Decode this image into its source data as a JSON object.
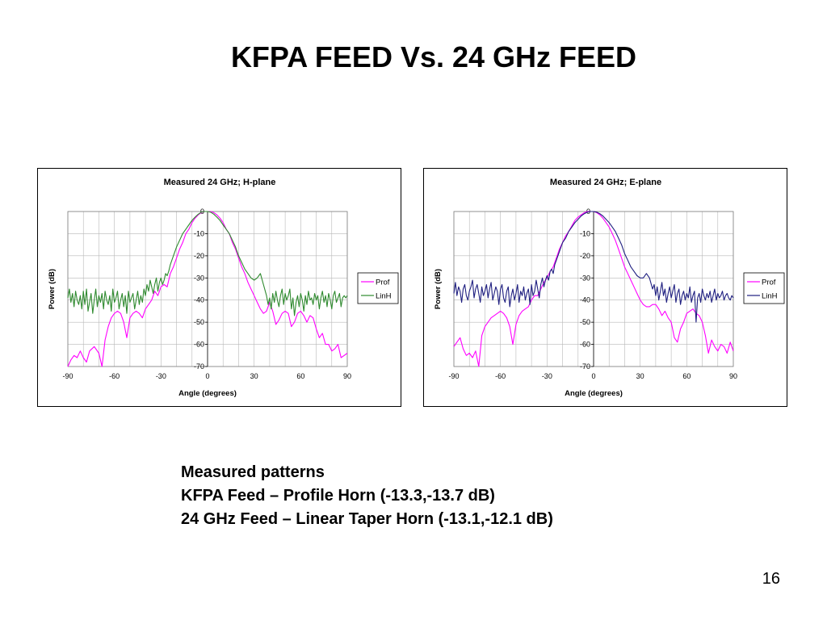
{
  "slide": {
    "title": "KFPA FEED Vs. 24 GHz FEED",
    "caption": [
      "Measured patterns",
      "KFPA Feed – Profile Horn (-13.3,-13.7 dB)",
      "24 GHz Feed – Linear Taper Horn (-13.1,-12.1 dB)"
    ],
    "page_number": "16"
  },
  "chart_data": [
    {
      "type": "line",
      "title": "Measured 24 GHz; H-plane",
      "xlabel": "Angle (degrees)",
      "ylabel": "Power (dB)",
      "xlim": [
        -90,
        90
      ],
      "ylim": [
        -70,
        0
      ],
      "xticks": [
        -90,
        -60,
        -30,
        0,
        30,
        60,
        90
      ],
      "yticks": [
        0,
        -10,
        -20,
        -30,
        -40,
        -50,
        -60,
        -70
      ],
      "grid": true,
      "legend_position": "right",
      "series": [
        {
          "name": "Prof",
          "color": "#ff00ff",
          "x": [
            -90,
            -88,
            -86,
            -84,
            -82,
            -80,
            -78,
            -76,
            -73,
            -70,
            -68,
            -66,
            -64,
            -62,
            -60,
            -58,
            -56,
            -54,
            -52,
            -50,
            -48,
            -46,
            -44,
            -42,
            -40,
            -38,
            -36,
            -34,
            -32,
            -30,
            -28,
            -26,
            -24,
            -22,
            -20,
            -18,
            -16,
            -14,
            -12,
            -10,
            -8,
            -6,
            -4,
            -2,
            0,
            2,
            4,
            6,
            8,
            10,
            12,
            14,
            16,
            18,
            20,
            22,
            24,
            26,
            28,
            30,
            32,
            34,
            36,
            38,
            40,
            42,
            44,
            46,
            48,
            50,
            52,
            54,
            56,
            58,
            60,
            62,
            64,
            66,
            68,
            70,
            72,
            74,
            76,
            78,
            80,
            82,
            84,
            86,
            88,
            90
          ],
          "y": [
            -70,
            -67,
            -65,
            -66,
            -63,
            -66,
            -68,
            -63,
            -61,
            -64,
            -70,
            -58,
            -52,
            -48,
            -46,
            -45,
            -46,
            -50,
            -57,
            -48,
            -46,
            -45,
            -46,
            -48,
            -44,
            -42,
            -40,
            -36,
            -38,
            -34,
            -33,
            -34,
            -28,
            -25,
            -21,
            -17,
            -14,
            -10,
            -8,
            -5,
            -3,
            -1.5,
            -0.5,
            0,
            0,
            0,
            -0.5,
            -1.5,
            -3,
            -5,
            -8,
            -10,
            -14,
            -17,
            -21,
            -25,
            -28,
            -32,
            -35,
            -38,
            -41,
            -44,
            -46,
            -45,
            -41,
            -45,
            -51,
            -49,
            -46,
            -45,
            -46,
            -52,
            -50,
            -46,
            -45,
            -47,
            -50,
            -47,
            -48,
            -53,
            -57,
            -55,
            -60,
            -60,
            -63,
            -62,
            -60,
            -66,
            -65,
            -64
          ]
        },
        {
          "name": "LinH",
          "color": "#2f8a2f",
          "x": [
            -90,
            -89,
            -88,
            -87,
            -86,
            -85,
            -84,
            -83,
            -82,
            -81,
            -80,
            -79,
            -78,
            -77,
            -76,
            -75,
            -74,
            -73,
            -72,
            -71,
            -70,
            -69,
            -68,
            -67,
            -66,
            -65,
            -64,
            -63,
            -62,
            -61,
            -60,
            -59,
            -58,
            -57,
            -56,
            -55,
            -54,
            -53,
            -52,
            -51,
            -50,
            -49,
            -48,
            -47,
            -46,
            -45,
            -44,
            -43,
            -42,
            -41,
            -40,
            -39,
            -38,
            -37,
            -36,
            -35,
            -34,
            -33,
            -32,
            -31,
            -30,
            -29,
            -28,
            -27,
            -26,
            -25,
            -24,
            -22,
            -20,
            -18,
            -16,
            -14,
            -12,
            -10,
            -8,
            -6,
            -4,
            -2,
            0,
            2,
            4,
            6,
            8,
            10,
            12,
            14,
            16,
            18,
            20,
            22,
            24,
            26,
            28,
            30,
            32,
            34,
            36,
            38,
            39,
            40,
            41,
            42,
            43,
            44,
            45,
            46,
            47,
            48,
            49,
            50,
            51,
            52,
            53,
            54,
            55,
            56,
            57,
            58,
            59,
            60,
            61,
            62,
            63,
            64,
            65,
            66,
            67,
            68,
            69,
            70,
            71,
            72,
            73,
            74,
            75,
            76,
            77,
            78,
            79,
            80,
            81,
            82,
            83,
            84,
            85,
            86,
            87,
            88,
            89,
            90
          ],
          "y": [
            -39,
            -35,
            -41,
            -37,
            -43,
            -36,
            -40,
            -42,
            -38,
            -44,
            -36,
            -42,
            -35,
            -45,
            -41,
            -37,
            -46,
            -40,
            -35,
            -43,
            -38,
            -41,
            -37,
            -44,
            -36,
            -40,
            -42,
            -38,
            -45,
            -35,
            -41,
            -39,
            -36,
            -44,
            -40,
            -37,
            -43,
            -38,
            -46,
            -36,
            -41,
            -39,
            -37,
            -44,
            -40,
            -36,
            -42,
            -38,
            -41,
            -35,
            -38,
            -33,
            -36,
            -31,
            -34,
            -37,
            -33,
            -30,
            -36,
            -32,
            -30,
            -33,
            -31,
            -28,
            -29,
            -27,
            -24,
            -20,
            -16,
            -13,
            -10,
            -8,
            -6,
            -4,
            -2.5,
            -1.2,
            -0.3,
            0,
            0,
            -0.3,
            -1.2,
            -2.5,
            -4,
            -6,
            -8,
            -10,
            -13,
            -16,
            -20,
            -23,
            -26,
            -28,
            -30,
            -31,
            -30,
            -28,
            -33,
            -38,
            -42,
            -39,
            -44,
            -37,
            -41,
            -36,
            -40,
            -43,
            -38,
            -35,
            -42,
            -37,
            -40,
            -38,
            -35,
            -44,
            -39,
            -47,
            -41,
            -38,
            -43,
            -37,
            -40,
            -45,
            -38,
            -42,
            -36,
            -40,
            -39,
            -42,
            -37,
            -40,
            -38,
            -44,
            -39,
            -36,
            -41,
            -38,
            -43,
            -37,
            -40,
            -44,
            -38,
            -36,
            -41,
            -39,
            -37,
            -43,
            -39,
            -38,
            -39,
            -38
          ]
        }
      ]
    },
    {
      "type": "line",
      "title": "Measured 24 GHz; E-plane",
      "xlabel": "Angle (degrees)",
      "ylabel": "Power (dB)",
      "xlim": [
        -90,
        90
      ],
      "ylim": [
        -70,
        0
      ],
      "xticks": [
        -90,
        -60,
        -30,
        0,
        30,
        60,
        90
      ],
      "yticks": [
        0,
        -10,
        -20,
        -30,
        -40,
        -50,
        -60,
        -70
      ],
      "grid": true,
      "legend_position": "right",
      "series": [
        {
          "name": "Prof",
          "color": "#ff00ff",
          "x": [
            -90,
            -88,
            -86,
            -84,
            -82,
            -80,
            -78,
            -76,
            -74,
            -72,
            -70,
            -68,
            -66,
            -64,
            -62,
            -60,
            -58,
            -56,
            -54,
            -52,
            -50,
            -48,
            -46,
            -44,
            -42,
            -40,
            -38,
            -36,
            -34,
            -32,
            -30,
            -28,
            -26,
            -24,
            -22,
            -20,
            -18,
            -16,
            -14,
            -12,
            -10,
            -8,
            -6,
            -4,
            -2,
            0,
            2,
            4,
            6,
            8,
            10,
            12,
            14,
            16,
            18,
            20,
            22,
            24,
            26,
            28,
            30,
            32,
            34,
            36,
            38,
            40,
            42,
            44,
            46,
            48,
            50,
            52,
            54,
            56,
            58,
            60,
            62,
            64,
            66,
            68,
            70,
            72,
            74,
            76,
            78,
            80,
            82,
            84,
            86,
            88,
            90
          ],
          "y": [
            -61,
            -59,
            -57,
            -62,
            -65,
            -64,
            -66,
            -63,
            -70,
            -56,
            -52,
            -50,
            -48,
            -47,
            -46,
            -45,
            -46,
            -48,
            -52,
            -60,
            -51,
            -47,
            -45,
            -44,
            -43,
            -40,
            -38,
            -38,
            -35,
            -32,
            -30,
            -27,
            -25,
            -21,
            -17,
            -14,
            -11,
            -9,
            -6.5,
            -4,
            -2.5,
            -1.5,
            -0.5,
            0,
            0,
            0,
            -0.5,
            -1.5,
            -3,
            -5,
            -7,
            -10,
            -13,
            -17,
            -21,
            -25,
            -28,
            -31,
            -34,
            -37,
            -40,
            -42,
            -43,
            -43,
            -42,
            -42,
            -44,
            -47,
            -45,
            -48,
            -50,
            -57,
            -59,
            -53,
            -50,
            -46,
            -45,
            -44,
            -46,
            -47,
            -50,
            -56,
            -64,
            -58,
            -61,
            -63,
            -60,
            -61,
            -64,
            -59,
            -63
          ]
        },
        {
          "name": "LinH",
          "color": "#1f1f80",
          "x": [
            -90,
            -89,
            -88,
            -87,
            -86,
            -85,
            -84,
            -83,
            -82,
            -81,
            -80,
            -79,
            -78,
            -77,
            -76,
            -75,
            -74,
            -73,
            -72,
            -71,
            -70,
            -69,
            -68,
            -67,
            -66,
            -65,
            -64,
            -63,
            -62,
            -61,
            -60,
            -59,
            -58,
            -57,
            -56,
            -55,
            -54,
            -53,
            -52,
            -51,
            -50,
            -49,
            -48,
            -47,
            -46,
            -45,
            -44,
            -43,
            -42,
            -41,
            -40,
            -39,
            -38,
            -37,
            -36,
            -35,
            -34,
            -33,
            -32,
            -31,
            -30,
            -29,
            -28,
            -27,
            -26,
            -25,
            -24,
            -22,
            -20,
            -18,
            -16,
            -14,
            -12,
            -10,
            -8,
            -6,
            -4,
            -2,
            0,
            2,
            4,
            6,
            8,
            10,
            12,
            14,
            16,
            18,
            20,
            22,
            24,
            26,
            28,
            30,
            32,
            34,
            36,
            38,
            39,
            40,
            41,
            42,
            43,
            44,
            45,
            46,
            47,
            48,
            49,
            50,
            51,
            52,
            53,
            54,
            55,
            56,
            57,
            58,
            59,
            60,
            61,
            62,
            63,
            64,
            65,
            66,
            67,
            68,
            69,
            70,
            71,
            72,
            73,
            74,
            75,
            76,
            77,
            78,
            79,
            80,
            81,
            82,
            83,
            84,
            85,
            86,
            87,
            88,
            89,
            90
          ],
          "y": [
            -37,
            -32,
            -38,
            -34,
            -36,
            -41,
            -35,
            -33,
            -38,
            -40,
            -36,
            -34,
            -31,
            -39,
            -35,
            -33,
            -37,
            -41,
            -34,
            -38,
            -36,
            -33,
            -39,
            -35,
            -32,
            -40,
            -37,
            -34,
            -36,
            -42,
            -35,
            -33,
            -39,
            -41,
            -36,
            -34,
            -43,
            -38,
            -35,
            -40,
            -37,
            -33,
            -41,
            -36,
            -38,
            -34,
            -40,
            -37,
            -35,
            -42,
            -33,
            -38,
            -36,
            -31,
            -35,
            -39,
            -33,
            -30,
            -34,
            -31,
            -29,
            -31,
            -27,
            -26,
            -28,
            -24,
            -22,
            -18,
            -14,
            -12,
            -9,
            -7,
            -5,
            -3.5,
            -2,
            -1,
            -0.3,
            0,
            0,
            -0.3,
            -1,
            -2,
            -3.5,
            -5,
            -7,
            -9,
            -12,
            -15,
            -19,
            -22,
            -25,
            -27,
            -29,
            -30,
            -30,
            -28,
            -30,
            -35,
            -33,
            -38,
            -34,
            -40,
            -36,
            -32,
            -38,
            -35,
            -41,
            -37,
            -34,
            -39,
            -36,
            -33,
            -41,
            -37,
            -35,
            -42,
            -38,
            -36,
            -40,
            -37,
            -39,
            -34,
            -41,
            -38,
            -36,
            -50,
            -39,
            -37,
            -41,
            -35,
            -38,
            -40,
            -37,
            -39,
            -36,
            -41,
            -38,
            -35,
            -40,
            -37,
            -39,
            -38,
            -36,
            -40,
            -38,
            -37,
            -39,
            -40,
            -38,
            -39
          ]
        }
      ]
    }
  ]
}
